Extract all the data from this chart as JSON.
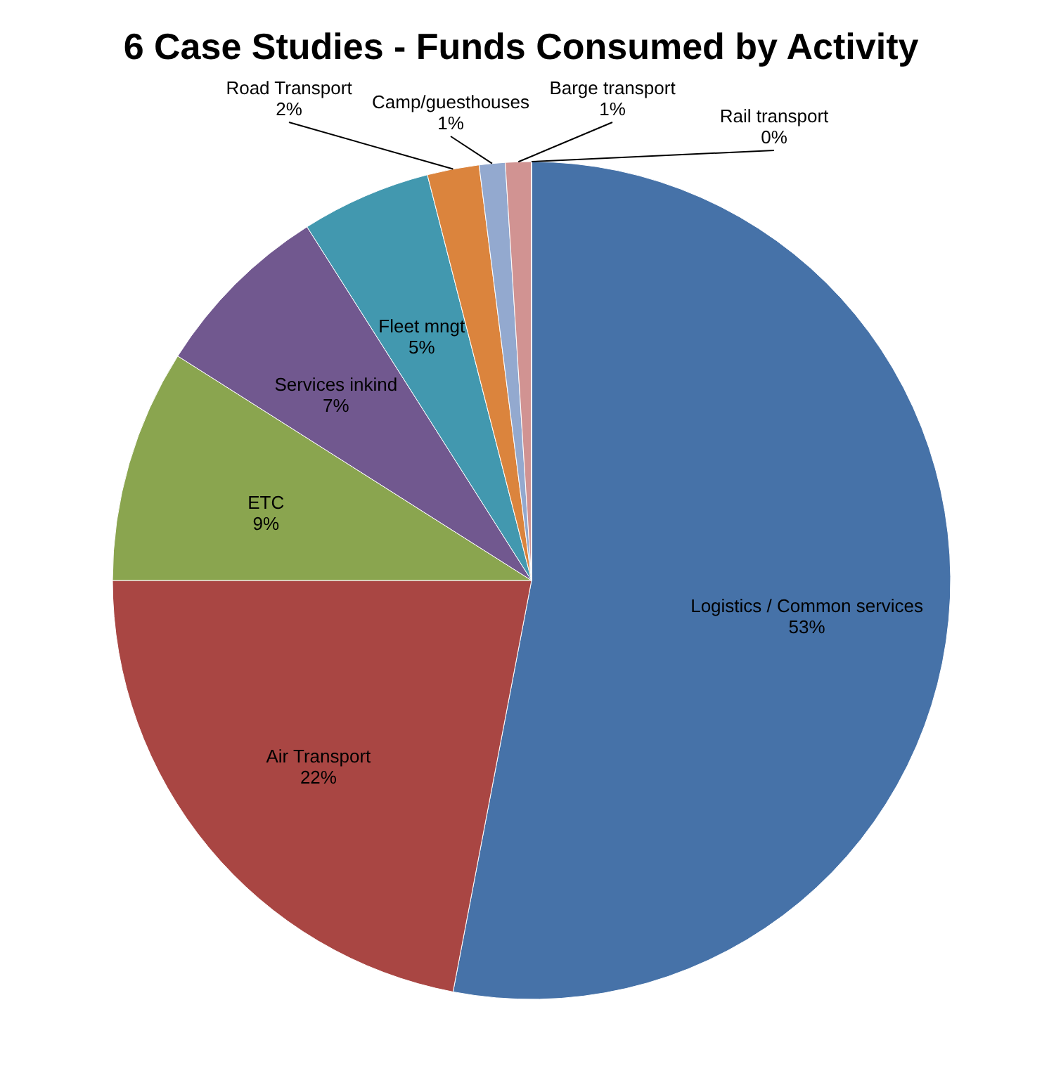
{
  "chart_data": {
    "type": "pie",
    "title": "6 Case Studies - Funds Consumed by Activity",
    "categories": [
      "Logistics / Common services",
      "Air Transport",
      "ETC",
      "Services inkind",
      "Fleet mngt",
      "Road Transport",
      "Camp/guesthouses",
      "Barge transport",
      "Rail transport"
    ],
    "values": [
      53,
      22,
      9,
      7,
      5,
      2,
      1,
      1,
      0
    ],
    "value_labels": [
      "53%",
      "22%",
      "9%",
      "7%",
      "5%",
      "2%",
      "1%",
      "1%",
      "0%"
    ],
    "colors": [
      "#4672a8",
      "#a94643",
      "#8aa54f",
      "#71588f",
      "#4298af",
      "#db843d",
      "#93a9cf",
      "#d19392",
      "#b9cd96"
    ]
  }
}
